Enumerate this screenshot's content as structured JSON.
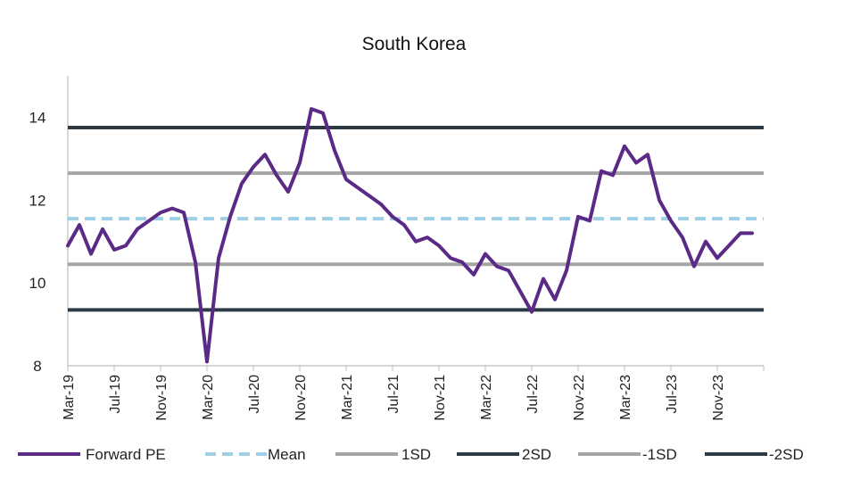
{
  "chart_data": {
    "type": "line",
    "title": "South Korea",
    "xlabel": "",
    "ylabel": "",
    "ylim": [
      8,
      15
    ],
    "y_ticks": [
      8,
      10,
      12,
      14
    ],
    "x_tick_labels": [
      "Mar-19",
      "Jul-19",
      "Nov-19",
      "Mar-20",
      "Jul-20",
      "Nov-20",
      "Mar-21",
      "Jul-21",
      "Nov-21",
      "Mar-22",
      "Jul-22",
      "Nov-22",
      "Mar-23",
      "Jul-23",
      "Nov-23"
    ],
    "xlim": [
      "2019-03",
      "2024-03"
    ],
    "grid": false,
    "legend_position": "bottom",
    "series": [
      {
        "name": "Forward PE",
        "color": "#5b2a86",
        "style": "solid",
        "x": [
          "2019-03",
          "2019-04",
          "2019-05",
          "2019-06",
          "2019-07",
          "2019-08",
          "2019-09",
          "2019-10",
          "2019-11",
          "2019-12",
          "2020-01",
          "2020-02",
          "2020-03",
          "2020-04",
          "2020-05",
          "2020-06",
          "2020-07",
          "2020-08",
          "2020-09",
          "2020-10",
          "2020-11",
          "2020-12",
          "2021-01",
          "2021-02",
          "2021-03",
          "2021-04",
          "2021-05",
          "2021-06",
          "2021-07",
          "2021-08",
          "2021-09",
          "2021-10",
          "2021-11",
          "2021-12",
          "2022-01",
          "2022-02",
          "2022-03",
          "2022-04",
          "2022-05",
          "2022-06",
          "2022-07",
          "2022-08",
          "2022-09",
          "2022-10",
          "2022-11",
          "2022-12",
          "2023-01",
          "2023-02",
          "2023-03",
          "2023-04",
          "2023-05",
          "2023-06",
          "2023-07",
          "2023-08",
          "2023-09",
          "2023-10",
          "2023-11",
          "2023-12",
          "2024-01",
          "2024-02"
        ],
        "values": [
          10.9,
          11.4,
          10.7,
          11.3,
          10.8,
          10.9,
          11.3,
          11.5,
          11.7,
          11.8,
          11.7,
          10.5,
          8.1,
          10.6,
          11.6,
          12.4,
          12.8,
          13.1,
          12.6,
          12.2,
          12.9,
          14.2,
          14.1,
          13.2,
          12.5,
          12.3,
          12.1,
          11.9,
          11.6,
          11.4,
          11.0,
          11.1,
          10.9,
          10.6,
          10.5,
          10.2,
          10.7,
          10.4,
          10.3,
          9.8,
          9.3,
          10.1,
          9.6,
          10.3,
          11.6,
          11.5,
          12.7,
          12.6,
          13.3,
          12.9,
          13.1,
          12.0,
          11.5,
          11.1,
          10.4,
          11.0,
          10.6,
          10.9,
          11.2,
          11.2
        ]
      },
      {
        "name": "Mean",
        "color": "#9fcfe6",
        "style": "dashed",
        "value": 11.55
      },
      {
        "name": "1SD",
        "color": "#a5a5a5",
        "style": "solid",
        "value": 12.65
      },
      {
        "name": "2SD",
        "color": "#2c3a45",
        "style": "solid",
        "value": 13.75
      },
      {
        "name": "-1SD",
        "color": "#a5a5a5",
        "style": "solid",
        "value": 10.45
      },
      {
        "name": "-2SD",
        "color": "#2c3a45",
        "style": "solid",
        "value": 9.35
      }
    ]
  }
}
